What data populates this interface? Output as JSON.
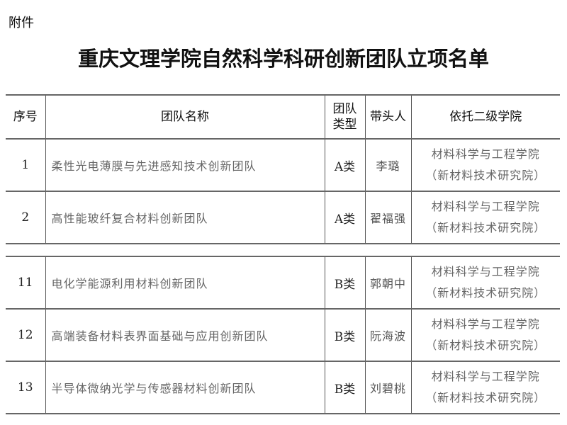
{
  "attachment_label": "附件",
  "title": "重庆文理学院自然科学科研创新团队立项名单",
  "headers": {
    "index": "序号",
    "team_name": "团队名称",
    "team_type_l1": "团队",
    "team_type_l2": "类型",
    "leader": "带头人",
    "college": "依托二级学院"
  },
  "rows_part1": [
    {
      "index": "1",
      "team_name": "柔性光电薄膜与先进感知技术创新团队",
      "team_type": "A类",
      "leader": "李璐",
      "college_l1": "材料科学与工程学院",
      "college_l2": "（新材料技术研究院）"
    },
    {
      "index": "2",
      "team_name": "高性能玻纤复合材料创新团队",
      "team_type": "A类",
      "leader": "翟福强",
      "college_l1": "材料科学与工程学院",
      "college_l2": "（新材料技术研究院）"
    }
  ],
  "rows_part2": [
    {
      "index": "11",
      "team_name": "电化学能源利用材料创新团队",
      "team_type": "B类",
      "leader": "郭朝中",
      "college_l1": "材料科学与工程学院",
      "college_l2": "（新材料技术研究院）"
    },
    {
      "index": "12",
      "team_name": "高端装备材料表界面基础与应用创新团队",
      "team_type": "B类",
      "leader": "阮海波",
      "college_l1": "材料科学与工程学院",
      "college_l2": "（新材料技术研究院）"
    },
    {
      "index": "13",
      "team_name": "半导体微纳光学与传感器材料创新团队",
      "team_type": "B类",
      "leader": "刘碧桃",
      "college_l1": "材料科学与工程学院",
      "college_l2": "（新材料技术研究院）"
    }
  ]
}
